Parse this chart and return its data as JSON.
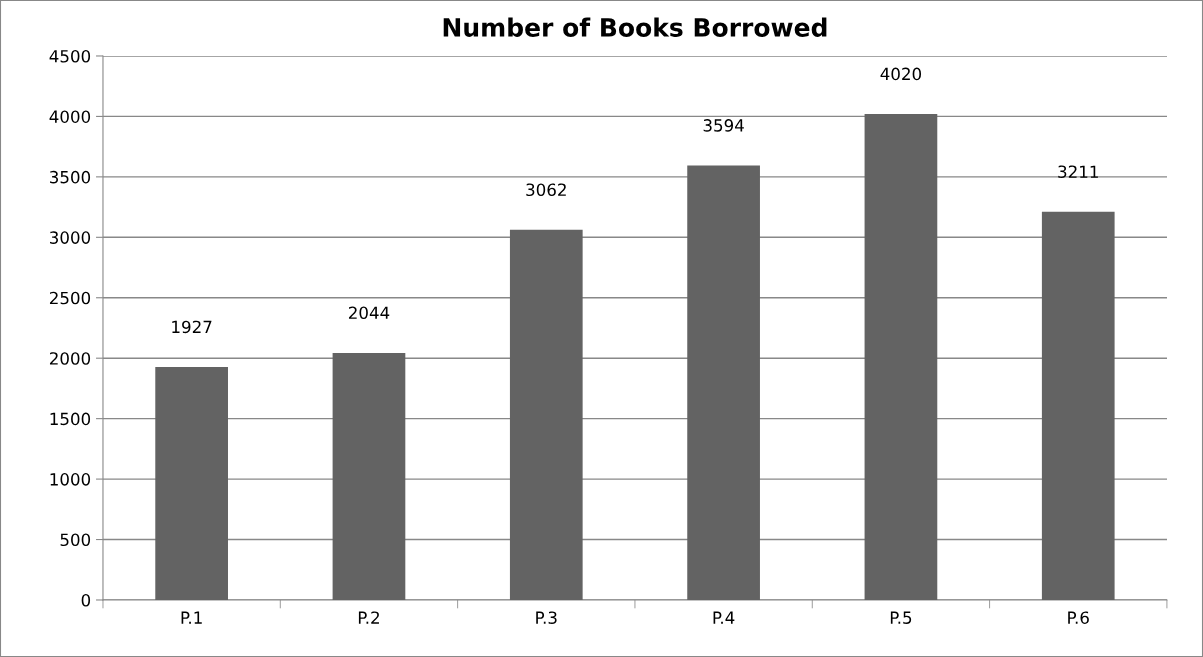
{
  "chart_data": {
    "type": "bar",
    "title": "Number of Books Borrowed",
    "categories": [
      "P.1",
      "P.2",
      "P.3",
      "P.4",
      "P.5",
      "P.6"
    ],
    "values": [
      1927,
      2044,
      3062,
      3594,
      4020,
      3211
    ],
    "color": "#636363",
    "ylim": [
      0,
      4500
    ],
    "yticks": [
      0,
      500,
      1000,
      1500,
      2000,
      2500,
      3000,
      3500,
      4000,
      4500
    ],
    "grid": "y",
    "data_labels": true
  }
}
